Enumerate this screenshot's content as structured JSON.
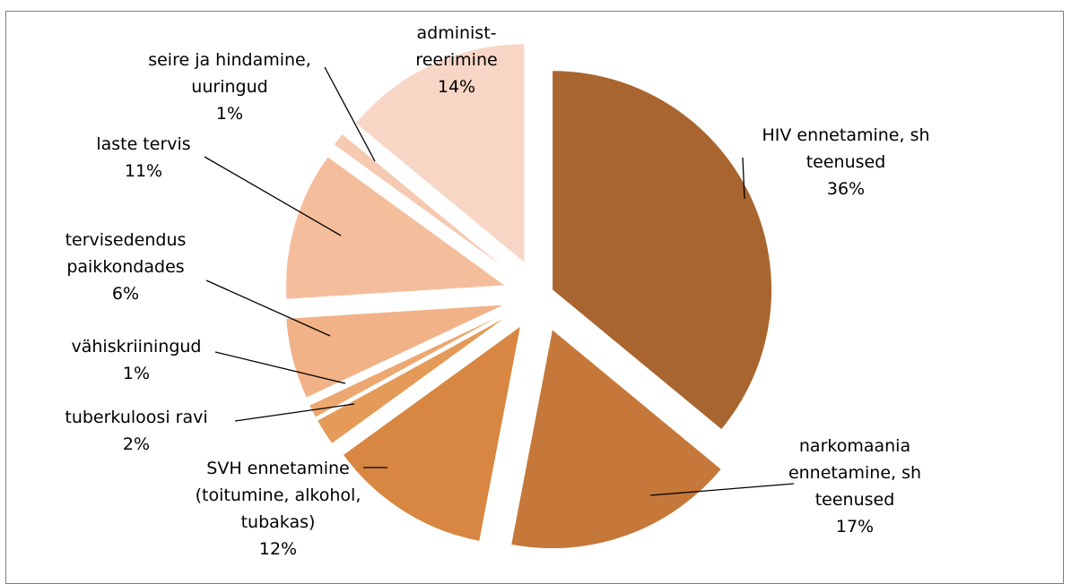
{
  "chart_data": {
    "type": "pie",
    "title": "",
    "slices": [
      {
        "label_lines": [
          "HIV ennetamine, sh",
          "teenused"
        ],
        "value": 36,
        "pct": "36%",
        "color": "#a9652f"
      },
      {
        "label_lines": [
          "narkomaania",
          "ennetamine, sh",
          "teenused"
        ],
        "value": 17,
        "pct": "17%",
        "color": "#c5783a"
      },
      {
        "label_lines": [
          "SVH ennetamine",
          "(toitumine, alkohol,",
          "tubakas)"
        ],
        "value": 12,
        "pct": "12%",
        "color": "#d88742"
      },
      {
        "label_lines": [
          "tuberkuloosi ravi"
        ],
        "value": 2,
        "pct": "2%",
        "color": "#e49a58"
      },
      {
        "label_lines": [
          "vähiskriiningud"
        ],
        "value": 1,
        "pct": "1%",
        "color": "#eda770"
      },
      {
        "label_lines": [
          "tervisedendus",
          "paikkondades"
        ],
        "value": 6,
        "pct": "6%",
        "color": "#f2b287"
      },
      {
        "label_lines": [
          "laste tervis"
        ],
        "value": 11,
        "pct": "11%",
        "color": "#f4be9d"
      },
      {
        "label_lines": [
          "seire ja hindamine,",
          "uuringud"
        ],
        "value": 1,
        "pct": "1%",
        "color": "#f6c9b1"
      },
      {
        "label_lines": [
          "administ-",
          "reerimine"
        ],
        "value": 14,
        "pct": "14%",
        "color": "#f8d6c5"
      }
    ]
  }
}
